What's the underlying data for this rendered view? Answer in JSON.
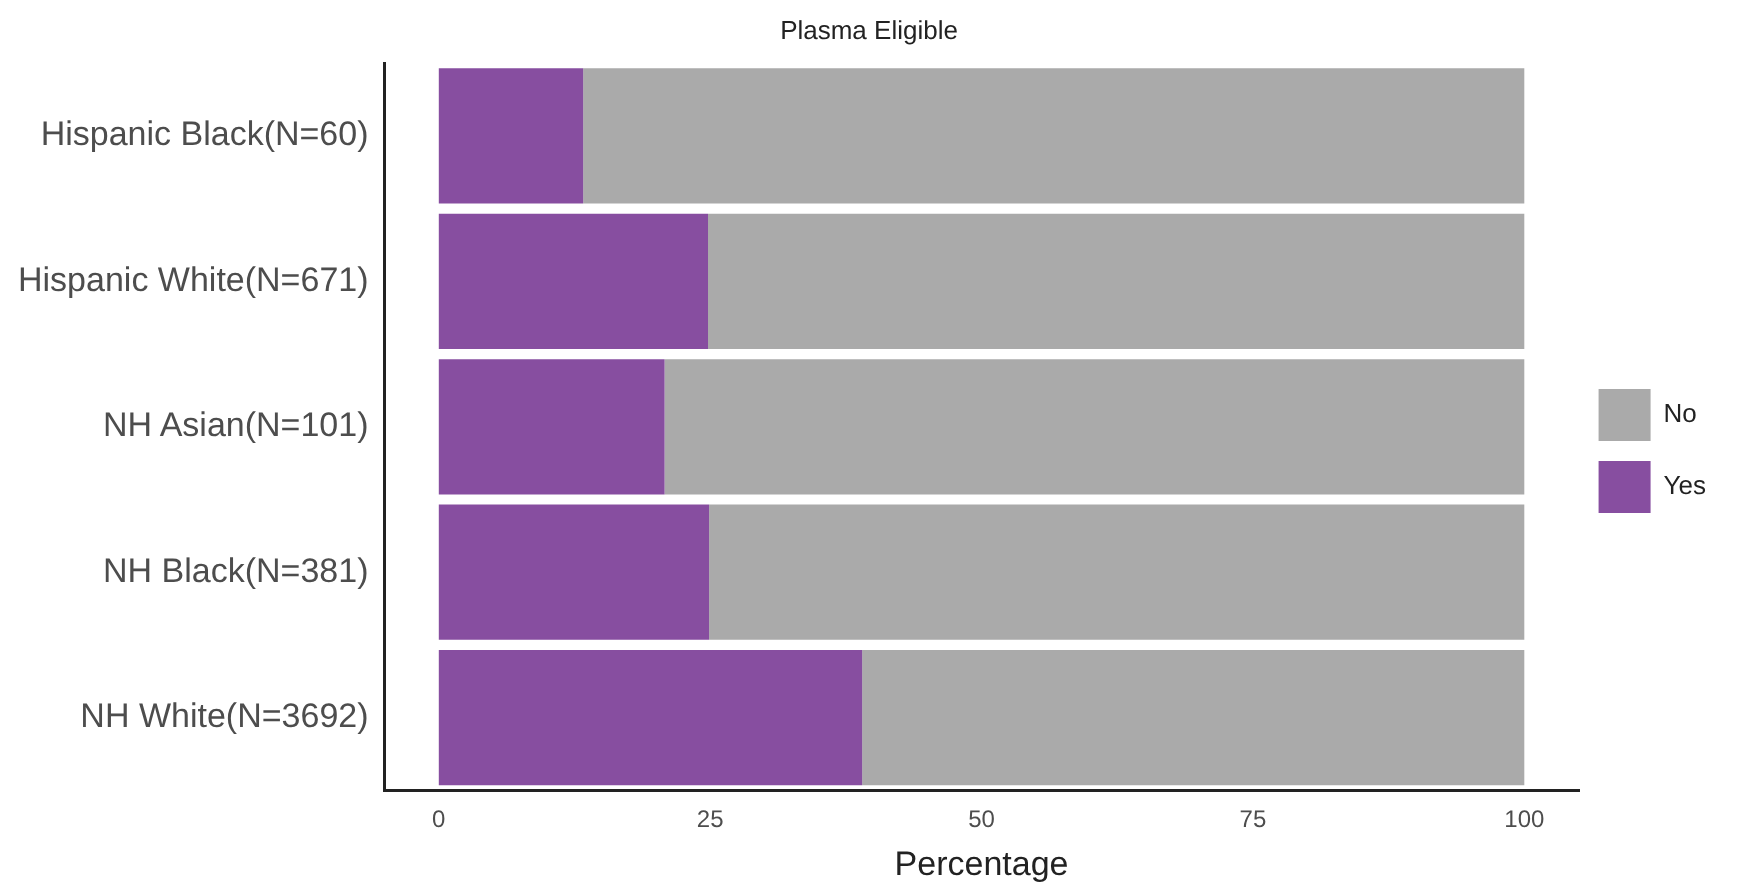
{
  "chart_data": {
    "type": "bar",
    "orientation": "horizontal",
    "stacked": true,
    "title": "Plasma Eligible",
    "xlabel": "Percentage",
    "categories": [
      "Hispanic Black(N=60)",
      "Hispanic White(N=671)",
      "NH Asian(N=101)",
      "NH Black(N=381)",
      "NH White(N=3692)"
    ],
    "series": [
      {
        "name": "Yes",
        "color": "#874ea0",
        "values": [
          13.3,
          24.8,
          20.8,
          24.9,
          39.0
        ]
      },
      {
        "name": "No",
        "color": "#aaaaaa",
        "values": [
          86.7,
          75.2,
          79.2,
          75.1,
          61.0
        ]
      }
    ],
    "xlim": [
      -5,
      105
    ],
    "xticks": [
      0,
      25,
      50,
      75,
      100
    ],
    "grid": false,
    "legend": "right"
  }
}
